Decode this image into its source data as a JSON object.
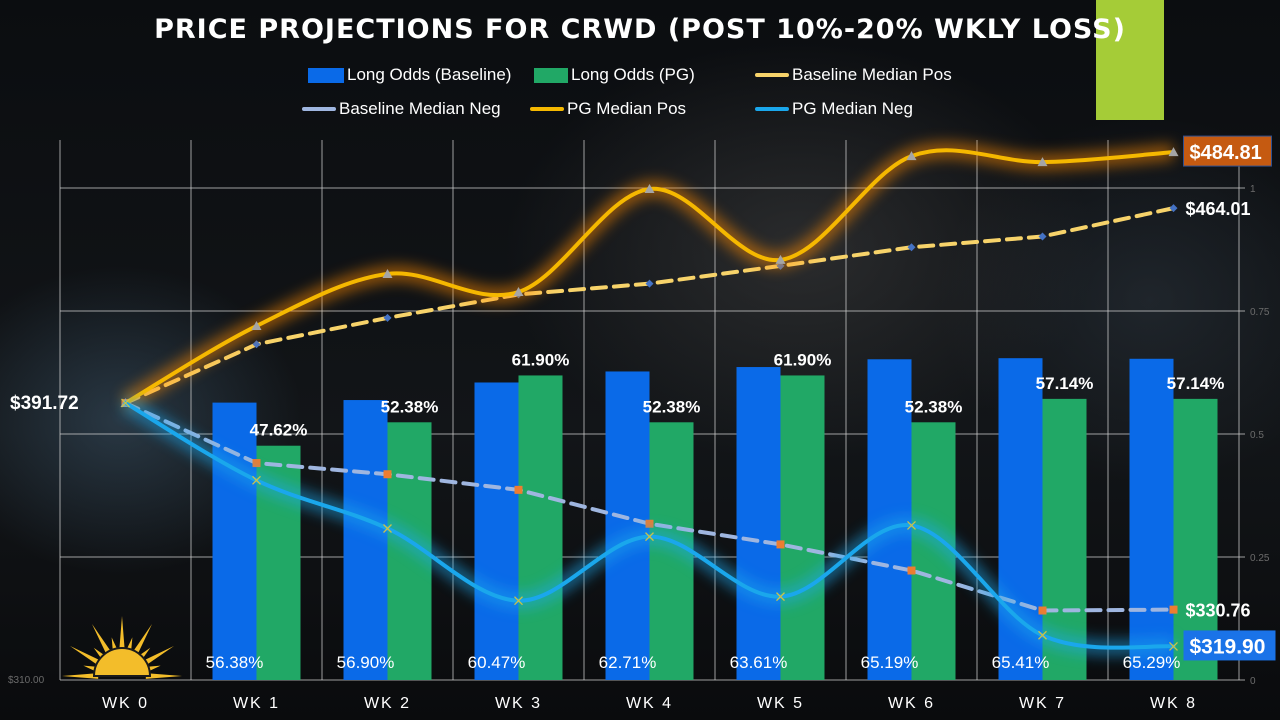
{
  "title": "PRICE PROJECTIONS FOR CRWD (POST 10%-20% WKLY LOSS)",
  "colors": {
    "baseline_bar": "#0a6ae8",
    "pg_bar": "#21a866",
    "baseline_pos": "#f7d36a",
    "pg_pos": "#f5b800",
    "baseline_neg": "#9fb6e0",
    "pg_neg": "#1aa7ec",
    "accent": "#a5cc37",
    "label_484": "#c55a11",
    "label_319": "#1a73e8"
  },
  "chart_data": {
    "type": "bar+line",
    "title": "PRICE PROJECTIONS FOR CRWD (POST 10%-20% WKLY LOSS)",
    "categories": [
      "WK 0",
      "WK 1",
      "WK 2",
      "WK 3",
      "WK 4",
      "WK 5",
      "WK 6",
      "WK 7",
      "WK 8"
    ],
    "left_axis": {
      "min_label": "$310.00",
      "min": 310
    },
    "right_axis": {
      "range": [
        0,
        1
      ],
      "ticks": [
        "0",
        "0.25",
        "0.5",
        "0.75",
        "1"
      ]
    },
    "grid": true,
    "legend_position": "top",
    "bar_series": [
      {
        "name": "Long Odds (Baseline)",
        "values": [
          null,
          0.5638,
          0.569,
          0.6047,
          0.6271,
          0.6361,
          0.6519,
          0.6541,
          0.6529
        ],
        "labels": [
          "",
          "56.38%",
          "56.90%",
          "60.47%",
          "62.71%",
          "63.61%",
          "65.19%",
          "65.41%",
          "65.29%"
        ]
      },
      {
        "name": "Long Odds (PG)",
        "values": [
          null,
          0.4762,
          0.5238,
          0.619,
          0.5238,
          0.619,
          0.5238,
          0.5714,
          0.5714
        ],
        "labels": [
          "",
          "47.62%",
          "52.38%",
          "61.90%",
          "52.38%",
          "61.90%",
          "52.38%",
          "57.14%",
          "57.14%"
        ]
      }
    ],
    "line_series": [
      {
        "name": "Baseline Median Pos",
        "values": [
          391.72,
          413.5,
          423.3,
          432.0,
          436.0,
          442.6,
          449.5,
          453.5,
          464.01
        ],
        "end_label": "$464.01",
        "marker": "diamond",
        "dashed": true
      },
      {
        "name": "Baseline Median Neg",
        "values": [
          391.72,
          374.0,
          370.7,
          366.1,
          356.1,
          350.0,
          342.3,
          330.5,
          330.76
        ],
        "end_label": "$330.76",
        "marker": "square",
        "dashed": true
      },
      {
        "name": "PG Median Pos",
        "values": [
          391.72,
          420.3,
          439.6,
          432.9,
          471.1,
          444.8,
          483.3,
          481.1,
          484.81
        ],
        "end_label": "$484.81",
        "marker": "triangle",
        "dashed": false
      },
      {
        "name": "PG Median Neg",
        "values": [
          391.72,
          368.9,
          354.7,
          333.4,
          352.3,
          334.6,
          355.6,
          323.2,
          319.9
        ],
        "end_label": "$319.90",
        "marker": "x",
        "dashed": false
      }
    ],
    "start_label": "$391.72"
  }
}
